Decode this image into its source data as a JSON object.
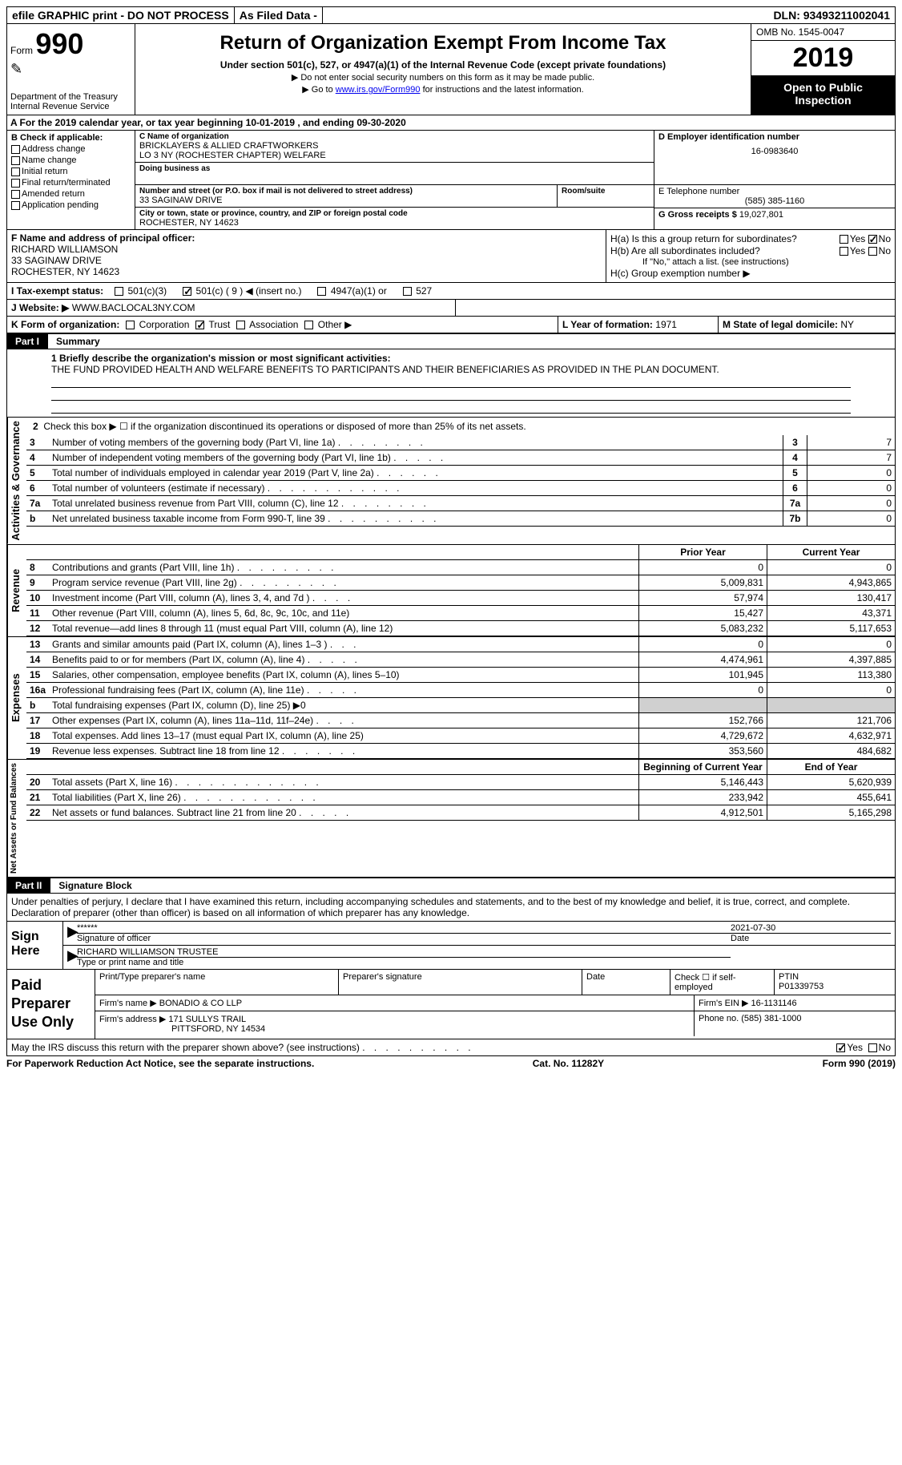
{
  "topBar": {
    "efile": "efile GRAPHIC print - DO NOT PROCESS",
    "asFiled": "As Filed Data -",
    "dln": "DLN: 93493211002041"
  },
  "header": {
    "formLabel": "Form",
    "formNum": "990",
    "dept": "Department of the Treasury\nInternal Revenue Service",
    "title": "Return of Organization Exempt From Income Tax",
    "sub1": "Under section 501(c), 527, or 4947(a)(1) of the Internal Revenue Code (except private foundations)",
    "sub2": "▶ Do not enter social security numbers on this form as it may be made public.",
    "sub3a": "▶ Go to ",
    "sub3link": "www.irs.gov/Form990",
    "sub3b": " for instructions and the latest information.",
    "omb": "OMB No. 1545-0047",
    "year": "2019",
    "openPub": "Open to Public Inspection"
  },
  "rowA": "A   For the 2019 calendar year, or tax year beginning 10-01-2019   , and ending 09-30-2020",
  "sectionB": {
    "label": "B Check if applicable:",
    "items": [
      "Address change",
      "Name change",
      "Initial return",
      "Final return/terminated",
      "Amended return",
      "Application pending"
    ]
  },
  "sectionC": {
    "nameLabel": "C Name of organization",
    "name1": "BRICKLAYERS & ALLIED CRAFTWORKERS",
    "name2": "LO 3 NY (ROCHESTER CHAPTER) WELFARE",
    "dba": "Doing business as",
    "addrLabel": "Number and street (or P.O. box if mail is not delivered to street address)",
    "addr": "33 SAGINAW DRIVE",
    "room": "Room/suite",
    "cityLabel": "City or town, state or province, country, and ZIP or foreign postal code",
    "city": "ROCHESTER, NY  14623"
  },
  "sectionD": {
    "label": "D Employer identification number",
    "value": "16-0983640"
  },
  "sectionE": {
    "label": "E Telephone number",
    "value": "(585) 385-1160"
  },
  "sectionG": {
    "label": "G Gross receipts $",
    "value": "19,027,801"
  },
  "sectionF": {
    "label": "F  Name and address of principal officer:",
    "name": "RICHARD WILLIAMSON",
    "addr1": "33 SAGINAW DRIVE",
    "addr2": "ROCHESTER, NY  14623"
  },
  "sectionH": {
    "a": "H(a)  Is this a group return for subordinates?",
    "b": "H(b)  Are all subordinates included?",
    "bnote": "If \"No,\" attach a list. (see instructions)",
    "c": "H(c)  Group exemption number ▶"
  },
  "rowI": {
    "label": "I   Tax-exempt status:",
    "opts": [
      "501(c)(3)",
      "501(c) ( 9 ) ◀ (insert no.)",
      "4947(a)(1) or",
      "527"
    ]
  },
  "rowJ": {
    "label": "J   Website: ▶",
    "value": "WWW.BACLOCAL3NY.COM"
  },
  "rowK": {
    "label": "K Form of organization:",
    "opts": [
      "Corporation",
      "Trust",
      "Association",
      "Other ▶"
    ]
  },
  "rowL": {
    "label": "L Year of formation:",
    "value": "1971"
  },
  "rowM": {
    "label": "M State of legal domicile:",
    "value": "NY"
  },
  "partI": {
    "num": "Part I",
    "title": "Summary"
  },
  "mission": {
    "label": "1 Briefly describe the organization's mission or most significant activities:",
    "text": "THE FUND PROVIDED HEALTH AND WELFARE BENEFITS TO PARTICIPANTS AND THEIR BENEFICIARIES AS PROVIDED IN THE PLAN DOCUMENT."
  },
  "gov": {
    "side": "Activities & Governance",
    "l2": "Check this box ▶ ☐ if the organization discontinued its operations or disposed of more than 25% of its net assets.",
    "rows": [
      {
        "n": "3",
        "d": "Number of voting members of the governing body (Part VI, line 1a)",
        "dots": ".  .  .  .  .  .  .  .",
        "r": "3",
        "v": "7"
      },
      {
        "n": "4",
        "d": "Number of independent voting members of the governing body (Part VI, line 1b)",
        "dots": ".  .  .  .  .",
        "r": "4",
        "v": "7"
      },
      {
        "n": "5",
        "d": "Total number of individuals employed in calendar year 2019 (Part V, line 2a)",
        "dots": ".  .  .  .  .  .",
        "r": "5",
        "v": "0"
      },
      {
        "n": "6",
        "d": "Total number of volunteers (estimate if necessary)",
        "dots": ".  .  .  .  .  .  .  .  .  .  .  .",
        "r": "6",
        "v": "0"
      },
      {
        "n": "7a",
        "d": "Total unrelated business revenue from Part VIII, column (C), line 12",
        "dots": ".  .  .  .  .  .  .  .",
        "r": "7a",
        "v": "0"
      },
      {
        "n": "b",
        "d": "Net unrelated business taxable income from Form 990-T, line 39",
        "dots": ".  .  .  .  .  .  .  .  .  .",
        "r": "7b",
        "v": "0"
      }
    ]
  },
  "colHeaders": {
    "prior": "Prior Year",
    "current": "Current Year"
  },
  "revenue": {
    "side": "Revenue",
    "rows": [
      {
        "n": "8",
        "d": "Contributions and grants (Part VIII, line 1h)",
        "dots": ".  .  .  .  .  .  .  .  .",
        "p": "0",
        "c": "0"
      },
      {
        "n": "9",
        "d": "Program service revenue (Part VIII, line 2g)",
        "dots": ".  .  .  .  .  .  .  .  .",
        "p": "5,009,831",
        "c": "4,943,865"
      },
      {
        "n": "10",
        "d": "Investment income (Part VIII, column (A), lines 3, 4, and 7d )",
        "dots": ".  .  .  .",
        "p": "57,974",
        "c": "130,417"
      },
      {
        "n": "11",
        "d": "Other revenue (Part VIII, column (A), lines 5, 6d, 8c, 9c, 10c, and 11e)",
        "dots": "",
        "p": "15,427",
        "c": "43,371"
      },
      {
        "n": "12",
        "d": "Total revenue—add lines 8 through 11 (must equal Part VIII, column (A), line 12)",
        "dots": "",
        "p": "5,083,232",
        "c": "5,117,653"
      }
    ]
  },
  "expenses": {
    "side": "Expenses",
    "rows": [
      {
        "n": "13",
        "d": "Grants and similar amounts paid (Part IX, column (A), lines 1–3 )",
        "dots": ".  .  .",
        "p": "0",
        "c": "0"
      },
      {
        "n": "14",
        "d": "Benefits paid to or for members (Part IX, column (A), line 4)",
        "dots": ".  .  .  .  .",
        "p": "4,474,961",
        "c": "4,397,885"
      },
      {
        "n": "15",
        "d": "Salaries, other compensation, employee benefits (Part IX, column (A), lines 5–10)",
        "dots": "",
        "p": "101,945",
        "c": "113,380"
      },
      {
        "n": "16a",
        "d": "Professional fundraising fees (Part IX, column (A), line 11e)",
        "dots": ".  .  .  .  .",
        "p": "0",
        "c": "0"
      },
      {
        "n": "b",
        "d": "Total fundraising expenses (Part IX, column (D), line 25) ▶0",
        "dots": "",
        "p": "",
        "c": "",
        "gray": true
      },
      {
        "n": "17",
        "d": "Other expenses (Part IX, column (A), lines 11a–11d, 11f–24e)",
        "dots": ".  .  .  .",
        "p": "152,766",
        "c": "121,706"
      },
      {
        "n": "18",
        "d": "Total expenses. Add lines 13–17 (must equal Part IX, column (A), line 25)",
        "dots": "",
        "p": "4,729,672",
        "c": "4,632,971"
      },
      {
        "n": "19",
        "d": "Revenue less expenses. Subtract line 18 from line 12",
        "dots": ".  .  .  .  .  .  .",
        "p": "353,560",
        "c": "484,682"
      }
    ]
  },
  "netAssets": {
    "side": "Net Assets or Fund Balances",
    "header": {
      "p": "Beginning of Current Year",
      "c": "End of Year"
    },
    "rows": [
      {
        "n": "20",
        "d": "Total assets (Part X, line 16)",
        "dots": ".  .  .  .  .  .  .  .  .  .  .  .  .",
        "p": "5,146,443",
        "c": "5,620,939"
      },
      {
        "n": "21",
        "d": "Total liabilities (Part X, line 26)",
        "dots": ".  .  .  .  .  .  .  .  .  .  .  .",
        "p": "233,942",
        "c": "455,641"
      },
      {
        "n": "22",
        "d": "Net assets or fund balances. Subtract line 21 from line 20",
        "dots": ".  .  .  .  .",
        "p": "4,912,501",
        "c": "5,165,298"
      }
    ]
  },
  "partII": {
    "num": "Part II",
    "title": "Signature Block"
  },
  "sigText": "Under penalties of perjury, I declare that I have examined this return, including accompanying schedules and statements, and to the best of my knowledge and belief, it is true, correct, and complete. Declaration of preparer (other than officer) is based on all information of which preparer has any knowledge.",
  "sign": {
    "side": "Sign Here",
    "stars": "******",
    "sigOfficer": "Signature of officer",
    "date": "2021-07-30",
    "dateLabel": "Date",
    "name": "RICHARD WILLIAMSON TRUSTEE",
    "nameLabel": "Type or print name and title"
  },
  "prep": {
    "side": "Paid Preparer Use Only",
    "h": [
      "Print/Type preparer's name",
      "Preparer's signature",
      "Date",
      "Check ☐ if self-employed",
      "PTIN"
    ],
    "ptin": "P01339753",
    "firm": "Firm's name    ▶ BONADIO & CO LLP",
    "ein": "Firm's EIN ▶ 16-1131146",
    "addr": "Firm's address ▶ 171 SULLYS TRAIL",
    "addr2": "PITTSFORD, NY  14534",
    "phone": "Phone no. (585) 381-1000"
  },
  "discuss": "May the IRS discuss this return with the preparer shown above? (see instructions)",
  "footer": {
    "left": "For Paperwork Reduction Act Notice, see the separate instructions.",
    "mid": "Cat. No. 11282Y",
    "right": "Form 990 (2019)"
  }
}
